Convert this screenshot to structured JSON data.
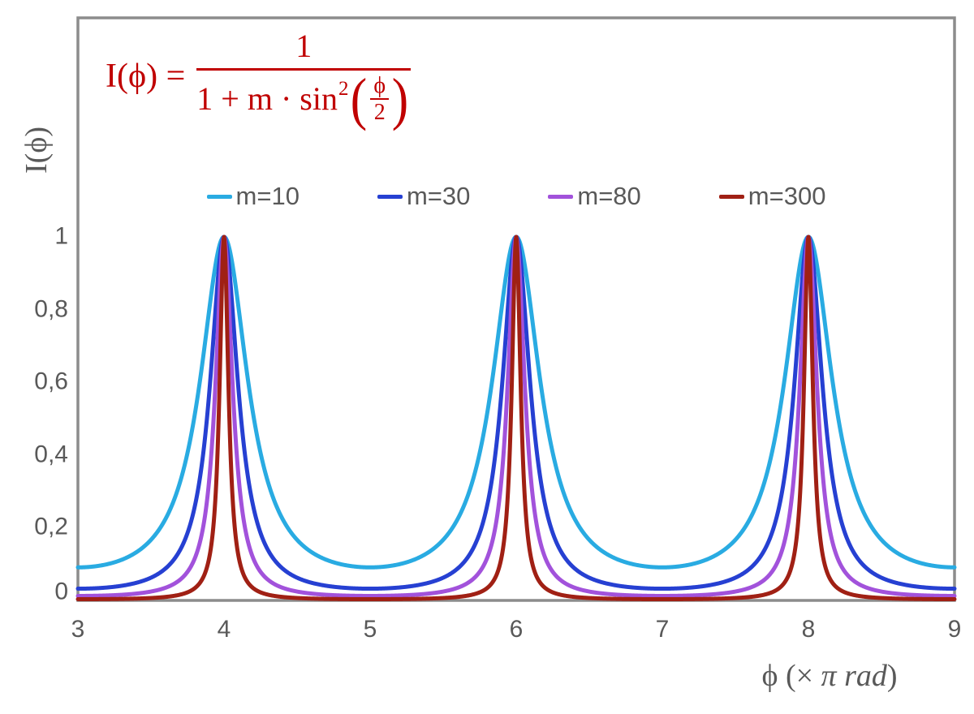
{
  "figure": {
    "background": "#FFFFFF",
    "frame_color": "#8C8C8C",
    "text_color": "#595959",
    "formula_color": "#C00000"
  },
  "formula": {
    "lhs": "I(ϕ) =",
    "numerator": "1",
    "den_prefix": "1 + m · sin",
    "den_sup": "2",
    "paren_open": "(",
    "paren_close": ")",
    "inner_num": "ϕ",
    "inner_den": "2",
    "as_text": "I(ϕ) = 1 / (1 + m·sin²(ϕ/2))"
  },
  "axes": {
    "y_title": "I(ϕ)",
    "x_title_pre": "ϕ  (× ",
    "x_title_italic": "π rad",
    "x_title_post": ")"
  },
  "chart_data": {
    "type": "line",
    "title": "",
    "function": "I(x) = 1 / (1 + m * sin(pi*x/2)^2), x in units of pi rad",
    "x": {
      "label": "ϕ (× π rad)",
      "min": 3,
      "max": 9,
      "ticks": [
        3,
        4,
        5,
        6,
        7,
        8,
        9
      ]
    },
    "y": {
      "label": "I(ϕ)",
      "min": 0,
      "max": 1,
      "ticks": [
        0,
        0.2,
        0.4,
        0.6,
        0.8,
        1
      ],
      "tick_labels": [
        "0",
        "0,2",
        "0,4",
        "0,6",
        "0,8",
        "1"
      ]
    },
    "grid": false,
    "legend_position": "top-center",
    "peaks": {
      "x": [
        4,
        6,
        8
      ],
      "y": 1
    },
    "series": [
      {
        "name": "m=10",
        "m": 10,
        "color": "#29ABE2",
        "min_y": 0.0909
      },
      {
        "name": "m=30",
        "m": 30,
        "color": "#2640D2",
        "min_y": 0.0323
      },
      {
        "name": "m=80",
        "m": 80,
        "color": "#A252DB",
        "min_y": 0.0123
      },
      {
        "name": "m=300",
        "m": 300,
        "color": "#A02014",
        "min_y": 0.0033
      }
    ]
  }
}
